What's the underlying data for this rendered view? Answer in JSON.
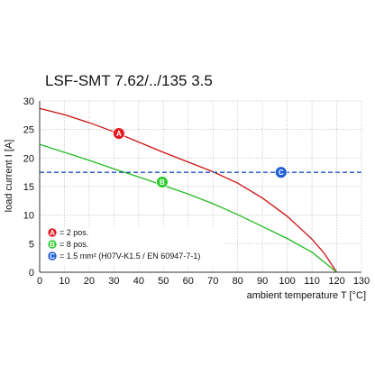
{
  "chart_data": {
    "type": "line",
    "title": "LSF-SMT 7.62/../135 3.5",
    "xlabel": "ambient temperature T [°C]",
    "ylabel": "load current I [A]",
    "xlim": [
      0,
      130
    ],
    "ylim": [
      0,
      30
    ],
    "x_ticks": [
      0,
      10,
      20,
      30,
      40,
      50,
      60,
      70,
      80,
      90,
      100,
      110,
      120,
      130
    ],
    "y_ticks": [
      0,
      5,
      10,
      15,
      20,
      25,
      30
    ],
    "grid": true,
    "series": [
      {
        "marker": "A",
        "legend": "= 2 pos.",
        "color": "#cc1111",
        "marker_color": "#e31b23",
        "marker_point": [
          32,
          24.3
        ],
        "points": [
          [
            0,
            28.7
          ],
          [
            10,
            27.6
          ],
          [
            20,
            26.2
          ],
          [
            30,
            24.6
          ],
          [
            40,
            22.8
          ],
          [
            50,
            21.0
          ],
          [
            60,
            19.3
          ],
          [
            70,
            17.6
          ],
          [
            80,
            15.6
          ],
          [
            90,
            13.0
          ],
          [
            100,
            9.8
          ],
          [
            110,
            5.8
          ],
          [
            115,
            3.3
          ],
          [
            120,
            0
          ]
        ]
      },
      {
        "marker": "B",
        "legend": "= 8 pos.",
        "color": "#22bb22",
        "marker_color": "#2ecc2e",
        "marker_point": [
          49.5,
          15.8
        ],
        "points": [
          [
            0,
            22.4
          ],
          [
            10,
            21.0
          ],
          [
            20,
            19.6
          ],
          [
            30,
            18.1
          ],
          [
            40,
            16.7
          ],
          [
            50,
            15.2
          ],
          [
            60,
            13.7
          ],
          [
            70,
            12.0
          ],
          [
            80,
            10.1
          ],
          [
            90,
            8.0
          ],
          [
            100,
            5.9
          ],
          [
            110,
            3.5
          ],
          [
            120,
            0
          ]
        ]
      },
      {
        "marker": "C",
        "legend": "= 1.5 mm² (H07V-K1.5 / EN 60947-7-1)",
        "color": "#1f4fbf",
        "marker_color": "#1f5fd6",
        "dashed": true,
        "marker_point": [
          97.5,
          17.5
        ],
        "points": [
          [
            0,
            17.5
          ],
          [
            130,
            17.5
          ]
        ]
      }
    ],
    "legend_position": "bottom-left"
  }
}
